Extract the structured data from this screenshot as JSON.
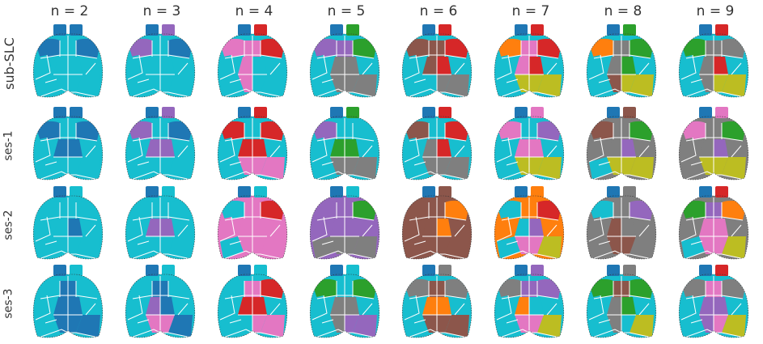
{
  "columns": [
    "n = 2",
    "n = 3",
    "n = 4",
    "n = 5",
    "n = 6",
    "n = 7",
    "n = 8",
    "n = 9"
  ],
  "rows": [
    "sub-SLC",
    "ses-1",
    "ses-2",
    "ses-3"
  ],
  "palette": {
    "blue": "#1f77b4",
    "cyan": "#17becf",
    "purple": "#9467bd",
    "red": "#d62728",
    "pink": "#e377c2",
    "green": "#2ca02c",
    "gray": "#7f7f7f",
    "orange": "#ff7f0e",
    "brown": "#8c564b",
    "olive": "#bcbd22"
  },
  "maps": [
    [
      [
        "blue",
        "blue",
        "blue",
        "blue",
        "cyan",
        "cyan",
        "cyan",
        "cyan",
        "cyan",
        "cyan",
        "cyan",
        "cyan"
      ],
      [
        "blue",
        "purple",
        "purple",
        "blue",
        "cyan",
        "cyan",
        "cyan",
        "cyan",
        "cyan",
        "cyan",
        "cyan",
        "cyan"
      ],
      [
        "blue",
        "red",
        "pink",
        "red",
        "cyan",
        "pink",
        "pink",
        "cyan",
        "cyan",
        "pink",
        "cyan",
        "cyan"
      ],
      [
        "blue",
        "green",
        "purple",
        "green",
        "cyan",
        "purple",
        "gray",
        "gray",
        "cyan",
        "gray",
        "gray",
        "gray"
      ],
      [
        "blue",
        "red",
        "brown",
        "red",
        "cyan",
        "brown",
        "brown",
        "red",
        "cyan",
        "cyan",
        "gray",
        "gray"
      ],
      [
        "blue",
        "red",
        "orange",
        "red",
        "cyan",
        "pink",
        "pink",
        "red",
        "cyan",
        "olive",
        "olive",
        "olive"
      ],
      [
        "blue",
        "green",
        "orange",
        "green",
        "cyan",
        "gray",
        "gray",
        "green",
        "cyan",
        "brown",
        "olive",
        "olive"
      ],
      [
        "blue",
        "red",
        "green",
        "gray",
        "cyan",
        "gray",
        "gray",
        "red",
        "cyan",
        "gray",
        "olive",
        "olive"
      ]
    ],
    [
      [
        "blue",
        "blue",
        "blue",
        "blue",
        "cyan",
        "cyan",
        "blue",
        "blue",
        "cyan",
        "cyan",
        "cyan",
        "cyan"
      ],
      [
        "blue",
        "purple",
        "purple",
        "blue",
        "cyan",
        "cyan",
        "purple",
        "purple",
        "cyan",
        "cyan",
        "cyan",
        "cyan"
      ],
      [
        "blue",
        "red",
        "red",
        "red",
        "cyan",
        "cyan",
        "red",
        "red",
        "cyan",
        "pink",
        "pink",
        "pink"
      ],
      [
        "blue",
        "green",
        "purple",
        "cyan",
        "cyan",
        "cyan",
        "green",
        "green",
        "cyan",
        "gray",
        "gray",
        "gray"
      ],
      [
        "blue",
        "red",
        "brown",
        "red",
        "cyan",
        "cyan",
        "gray",
        "red",
        "cyan",
        "gray",
        "gray",
        "gray"
      ],
      [
        "blue",
        "pink",
        "pink",
        "purple",
        "cyan",
        "cyan",
        "pink",
        "pink",
        "cyan",
        "olive",
        "olive",
        "olive"
      ],
      [
        "blue",
        "brown",
        "brown",
        "green",
        "gray",
        "gray",
        "gray",
        "purple",
        "cyan",
        "olive",
        "olive",
        "olive"
      ],
      [
        "blue",
        "pink",
        "pink",
        "green",
        "gray",
        "gray",
        "gray",
        "purple",
        "gray",
        "olive",
        "olive",
        "olive"
      ]
    ],
    [
      [
        "blue",
        "cyan",
        "cyan",
        "cyan",
        "cyan",
        "cyan",
        "cyan",
        "blue",
        "cyan",
        "cyan",
        "cyan",
        "cyan"
      ],
      [
        "blue",
        "cyan",
        "cyan",
        "cyan",
        "cyan",
        "cyan",
        "purple",
        "purple",
        "cyan",
        "cyan",
        "cyan",
        "cyan"
      ],
      [
        "blue",
        "cyan",
        "cyan",
        "red",
        "pink",
        "pink",
        "pink",
        "pink",
        "cyan",
        "pink",
        "pink",
        "pink"
      ],
      [
        "blue",
        "cyan",
        "purple",
        "green",
        "purple",
        "purple",
        "purple",
        "purple",
        "gray",
        "gray",
        "gray",
        "gray"
      ],
      [
        "blue",
        "brown",
        "brown",
        "orange",
        "brown",
        "brown",
        "brown",
        "orange",
        "brown",
        "brown",
        "brown",
        "brown"
      ],
      [
        "blue",
        "orange",
        "cyan",
        "red",
        "orange",
        "orange",
        "cyan",
        "purple",
        "cyan",
        "pink",
        "pink",
        "olive"
      ],
      [
        "blue",
        "gray",
        "cyan",
        "purple",
        "gray",
        "gray",
        "brown",
        "gray",
        "gray",
        "brown",
        "brown",
        "gray"
      ],
      [
        "blue",
        "red",
        "green",
        "orange",
        "gray",
        "purple",
        "pink",
        "pink",
        "cyan",
        "pink",
        "pink",
        "olive"
      ]
    ],
    [
      [
        "blue",
        "cyan",
        "cyan",
        "cyan",
        "cyan",
        "blue",
        "blue",
        "blue",
        "cyan",
        "blue",
        "blue",
        "blue"
      ],
      [
        "blue",
        "cyan",
        "cyan",
        "cyan",
        "cyan",
        "blue",
        "purple",
        "blue",
        "cyan",
        "pink",
        "pink",
        "blue"
      ],
      [
        "blue",
        "cyan",
        "cyan",
        "red",
        "cyan",
        "pink",
        "red",
        "red",
        "cyan",
        "cyan",
        "pink",
        "pink"
      ],
      [
        "blue",
        "cyan",
        "green",
        "green",
        "cyan",
        "cyan",
        "gray",
        "gray",
        "cyan",
        "gray",
        "purple",
        "purple"
      ],
      [
        "blue",
        "gray",
        "gray",
        "gray",
        "cyan",
        "brown",
        "orange",
        "orange",
        "cyan",
        "brown",
        "brown",
        "brown"
      ],
      [
        "blue",
        "purple",
        "gray",
        "purple",
        "cyan",
        "purple",
        "orange",
        "cyan",
        "cyan",
        "pink",
        "pink",
        "olive"
      ],
      [
        "blue",
        "gray",
        "green",
        "green",
        "cyan",
        "brown",
        "gray",
        "green",
        "cyan",
        "gray",
        "cyan",
        "olive"
      ],
      [
        "blue",
        "red",
        "gray",
        "gray",
        "cyan",
        "pink",
        "purple",
        "purple",
        "cyan",
        "purple",
        "pink",
        "olive"
      ]
    ]
  ]
}
